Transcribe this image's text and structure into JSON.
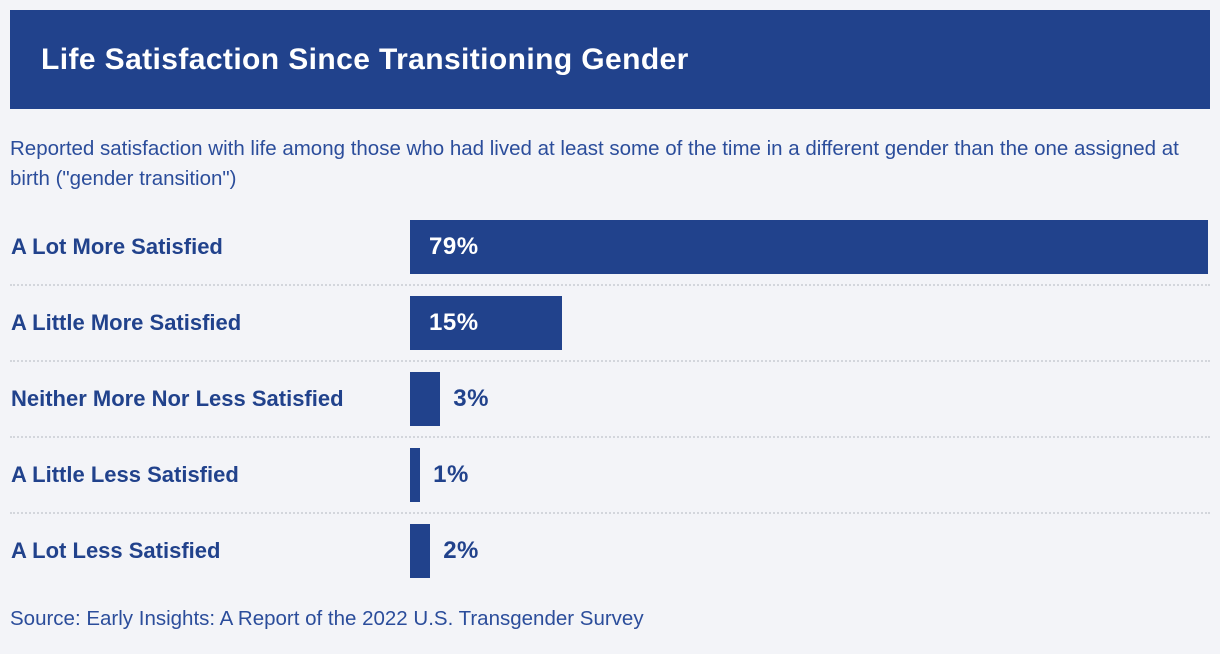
{
  "header": {
    "title": "Life Satisfaction Since Transitioning Gender"
  },
  "subtitle": "Reported satisfaction with life among those who had lived at least some of the time in a different gender than the one assigned at birth (\"gender transition\")",
  "source": "Source: Early Insights: A Report of the 2022 U.S. Transgender Survey",
  "colors": {
    "primary_blue": "#21428C",
    "background": "#F3F4F8",
    "subtitle_text": "#2B4D9B",
    "separator": "#D3D6DC",
    "bar_value_inside": "#FFFFFF"
  },
  "chart_data": {
    "type": "bar",
    "orientation": "horizontal",
    "title": "Life Satisfaction Since Transitioning Gender",
    "subtitle": "Reported satisfaction with life among those who had lived at least some of the time in a different gender than the one assigned at birth (\"gender transition\")",
    "categories": [
      "A Lot More Satisfied",
      "A Little More Satisfied",
      "Neither More Nor Less Satisfied",
      "A Little Less Satisfied",
      "A Lot Less Satisfied"
    ],
    "values": [
      79,
      15,
      3,
      1,
      2
    ],
    "value_labels": [
      "79%",
      "15%",
      "3%",
      "1%",
      "2%"
    ],
    "unit": "%",
    "xlabel": "",
    "ylabel": "",
    "xlim": [
      0,
      79.2
    ],
    "grid": "dotted horizontal separators between rows",
    "legend": "none",
    "source": "Source: Early Insights: A Report of the 2022 U.S. Transgender Survey"
  }
}
